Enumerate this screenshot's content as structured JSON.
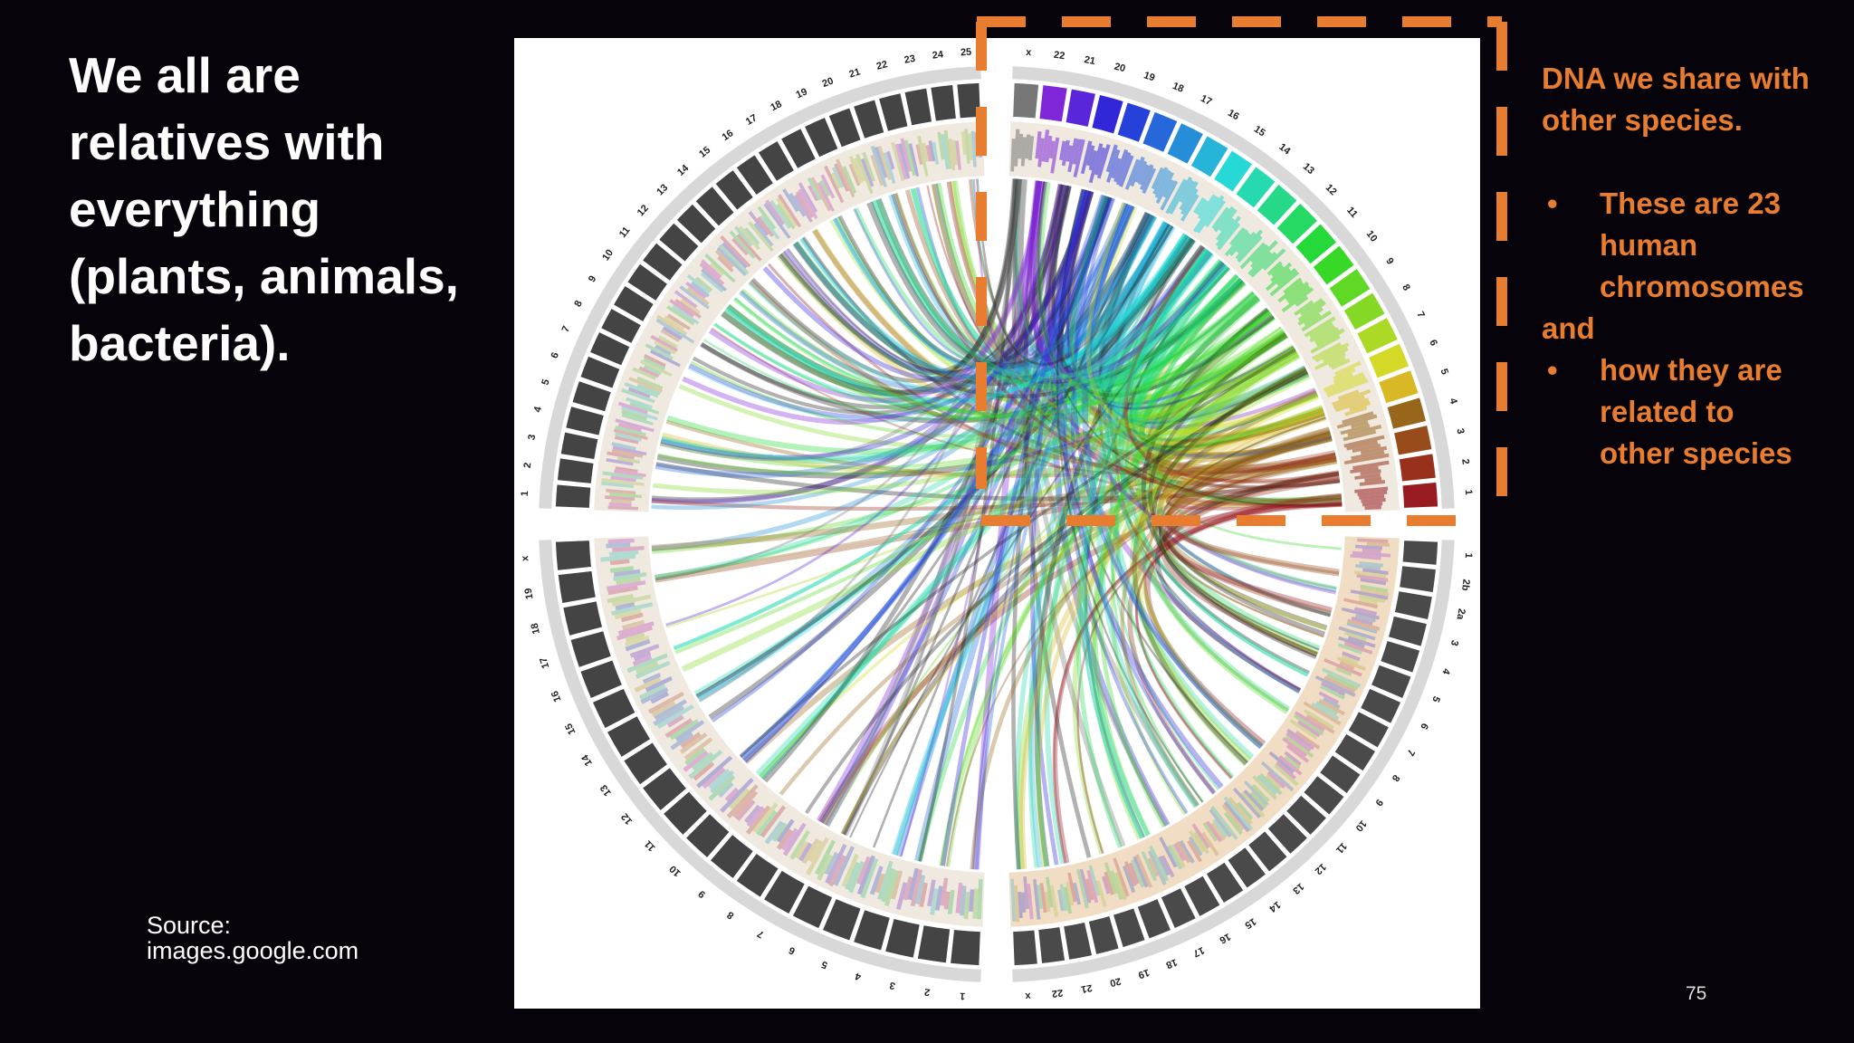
{
  "title": "We all are relatives with everything (plants, animals, bacteria).",
  "source": {
    "label": "Source:",
    "url": "images.google.com"
  },
  "callout": {
    "heading": "DNA we share with other species.",
    "items": [
      "These are 23 human chromosomes",
      "how they are related to other species"
    ],
    "connector": "and"
  },
  "page_number": "75",
  "figure": {
    "quadrants": [
      {
        "labels": [
          "x",
          "22",
          "21",
          "20",
          "19",
          "18",
          "17",
          "16",
          "15",
          "14",
          "13",
          "12",
          "11",
          "10",
          "9",
          "8",
          "7",
          "6",
          "5",
          "4",
          "3",
          "2",
          "1"
        ]
      },
      {
        "labels": [
          "1",
          "2b",
          "2a",
          "3",
          "4",
          "5",
          "6",
          "7",
          "8",
          "9",
          "10",
          "11",
          "12",
          "13",
          "14",
          "15",
          "16",
          "17",
          "18",
          "19",
          "20",
          "21",
          "22",
          "x"
        ]
      },
      {
        "labels": [
          "1",
          "2",
          "3",
          "4",
          "5",
          "6",
          "7",
          "8",
          "9",
          "10",
          "11",
          "12",
          "13",
          "14",
          "15",
          "16",
          "17",
          "18",
          "19",
          "x"
        ]
      },
      {
        "labels": [
          "1",
          "2",
          "3",
          "4",
          "5",
          "6",
          "7",
          "8",
          "9",
          "10",
          "11",
          "12",
          "13",
          "14",
          "15",
          "16",
          "17",
          "18",
          "19",
          "20",
          "21",
          "22",
          "23",
          "24",
          "25"
        ]
      }
    ]
  }
}
